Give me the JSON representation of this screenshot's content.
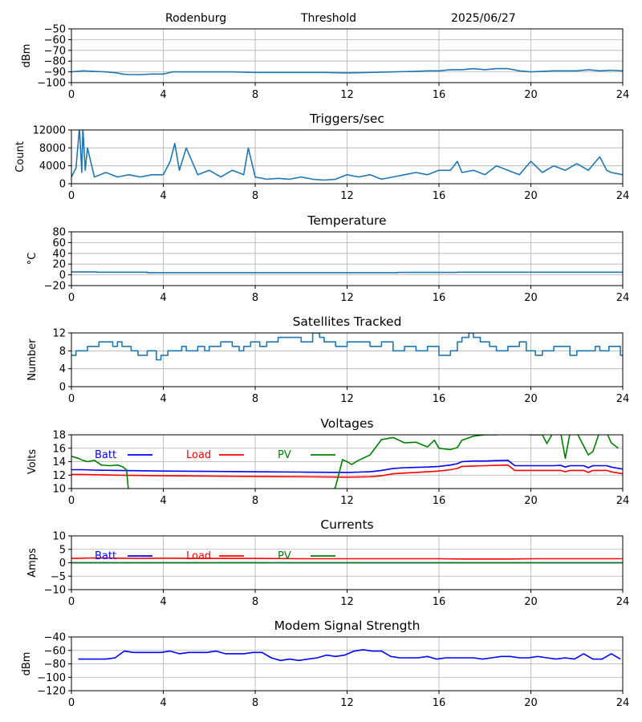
{
  "header": {
    "station": "Rodenburg",
    "mode": "Threshold",
    "date": "2025/06/27"
  },
  "colors": {
    "default_line": "#1f77b4",
    "batt": "#0000ff",
    "load": "#ff0000",
    "pv": "#008000",
    "grid": "#b0b0b0"
  },
  "chart_data": [
    {
      "type": "line",
      "title": "",
      "ylabel": "dBm",
      "xlim": [
        0,
        24
      ],
      "ylim": [
        -100,
        -50
      ],
      "xticks": [
        0,
        4,
        8,
        12,
        16,
        20,
        24
      ],
      "yticks": [
        -100,
        -90,
        -80,
        -70,
        -60,
        -50
      ],
      "grid": true,
      "series": [
        {
          "color": "#1f77b4",
          "x": [
            0,
            0.5,
            1,
            1.5,
            2,
            2.2,
            2.5,
            3,
            3.5,
            4,
            4.4,
            5,
            6,
            7,
            8,
            9,
            10,
            11,
            12,
            13,
            14,
            15,
            15.5,
            16,
            16.5,
            17,
            17.5,
            18,
            18.5,
            19,
            19.5,
            20,
            20.5,
            21,
            21.5,
            22,
            22.5,
            23,
            23.5,
            24
          ],
          "y": [
            -90,
            -89,
            -89.5,
            -90,
            -91,
            -92,
            -92.5,
            -92.5,
            -92,
            -92,
            -90,
            -90,
            -90,
            -90,
            -90.5,
            -90.5,
            -90.5,
            -90.5,
            -91,
            -90.5,
            -90,
            -89.5,
            -89,
            -89,
            -88,
            -88,
            -87,
            -88,
            -87,
            -87,
            -89,
            -90,
            -89.5,
            -89,
            -89,
            -89,
            -88,
            -89,
            -88.5,
            -89
          ]
        }
      ]
    },
    {
      "type": "line",
      "title": "Triggers/sec",
      "ylabel": "Count",
      "xlim": [
        0,
        24
      ],
      "ylim": [
        0,
        12000
      ],
      "xticks": [
        0,
        4,
        8,
        12,
        16,
        20,
        24
      ],
      "yticks": [
        0,
        4000,
        8000,
        12000
      ],
      "grid": true,
      "series": [
        {
          "color": "#1f77b4",
          "x": [
            0,
            0.2,
            0.35,
            0.45,
            0.5,
            0.6,
            0.7,
            1,
            1.5,
            2,
            2.5,
            3,
            3.5,
            4,
            4.3,
            4.5,
            4.7,
            5,
            5.5,
            6,
            6.5,
            7,
            7.5,
            7.7,
            8,
            8.5,
            9,
            9.5,
            10,
            10.5,
            11,
            11.5,
            12,
            12.5,
            13,
            13.5,
            14,
            14.5,
            15,
            15.5,
            16,
            16.5,
            16.8,
            17,
            17.5,
            18,
            18.5,
            19,
            19.5,
            20,
            20.5,
            21,
            21.5,
            22,
            22.5,
            23,
            23.3,
            23.5,
            24
          ],
          "y": [
            1500,
            3500,
            12500,
            2500,
            12500,
            3000,
            8000,
            1500,
            2500,
            1500,
            2000,
            1500,
            2000,
            2000,
            5000,
            9000,
            3000,
            8000,
            2000,
            3000,
            1500,
            3000,
            2000,
            8000,
            1500,
            1000,
            1200,
            1000,
            1500,
            1000,
            800,
            1000,
            2000,
            1500,
            2000,
            1000,
            1500,
            2000,
            2500,
            2000,
            3000,
            3000,
            5000,
            2500,
            3000,
            2000,
            4000,
            3000,
            2000,
            5000,
            2500,
            4000,
            3000,
            4500,
            3000,
            6000,
            3000,
            2500,
            2000
          ]
        }
      ]
    },
    {
      "type": "line",
      "title": "Temperature",
      "ylabel": "°C",
      "xlim": [
        0,
        24
      ],
      "ylim": [
        -20,
        80
      ],
      "xticks": [
        0,
        4,
        8,
        12,
        16,
        20,
        24
      ],
      "yticks": [
        -20,
        0,
        20,
        40,
        60,
        80
      ],
      "grid": true,
      "series": [
        {
          "color": "#1f77b4",
          "x": [
            0,
            1.1,
            1.1,
            3.3,
            3.3,
            14.2,
            14.2,
            16.8,
            16.8,
            24
          ],
          "y": [
            5.5,
            5.5,
            5,
            5,
            4,
            4,
            4.5,
            4.5,
            5,
            5
          ]
        }
      ]
    },
    {
      "type": "line",
      "title": "Satellites Tracked",
      "ylabel": "Number",
      "xlim": [
        0,
        24
      ],
      "ylim": [
        0,
        12
      ],
      "xticks": [
        0,
        4,
        8,
        12,
        16,
        20,
        24
      ],
      "yticks": [
        0,
        4,
        8,
        12
      ],
      "grid": true,
      "series": [
        {
          "color": "#1f77b4",
          "x": [
            0,
            0.2,
            0.2,
            0.7,
            0.7,
            1.2,
            1.2,
            1.8,
            1.8,
            2,
            2,
            2.2,
            2.2,
            2.6,
            2.6,
            2.9,
            2.9,
            3.3,
            3.3,
            3.7,
            3.7,
            3.9,
            3.9,
            4.2,
            4.2,
            4.8,
            4.8,
            5,
            5,
            5.5,
            5.5,
            5.8,
            5.8,
            6,
            6,
            6.5,
            6.5,
            7,
            7,
            7.3,
            7.3,
            7.5,
            7.5,
            7.8,
            7.8,
            8.2,
            8.2,
            8.5,
            8.5,
            9,
            9,
            10,
            10,
            10.5,
            10.5,
            10.8,
            10.8,
            11,
            11,
            11.5,
            11.5,
            12,
            12,
            13,
            13,
            13.5,
            13.5,
            14,
            14,
            14.5,
            14.5,
            15,
            15,
            15.5,
            15.5,
            16,
            16,
            16.5,
            16.5,
            16.8,
            16.8,
            17,
            17,
            17.3,
            17.3,
            17.5,
            17.5,
            17.8,
            17.8,
            18.2,
            18.2,
            18.5,
            18.5,
            19,
            19,
            19.5,
            19.5,
            19.8,
            19.8,
            20.2,
            20.2,
            20.5,
            20.5,
            21,
            21,
            21.7,
            21.7,
            22,
            22,
            22.8,
            22.8,
            23,
            23,
            23.4,
            23.4,
            23.9,
            23.9,
            24
          ],
          "y": [
            7,
            7,
            8,
            8,
            9,
            9,
            10,
            10,
            9,
            9,
            10,
            10,
            9,
            9,
            8,
            8,
            7,
            7,
            8,
            8,
            6,
            6,
            7,
            7,
            8,
            8,
            9,
            9,
            8,
            8,
            9,
            9,
            8,
            8,
            9,
            9,
            10,
            10,
            9,
            9,
            8,
            8,
            9,
            9,
            10,
            10,
            9,
            9,
            10,
            10,
            11,
            11,
            10,
            10,
            12,
            12,
            11,
            11,
            10,
            10,
            9,
            9,
            10,
            10,
            9,
            9,
            10,
            10,
            8,
            8,
            9,
            9,
            8,
            8,
            9,
            9,
            7,
            7,
            8,
            8,
            10,
            10,
            11,
            11,
            12,
            12,
            11,
            11,
            10,
            10,
            9,
            9,
            8,
            8,
            9,
            9,
            10,
            10,
            8,
            8,
            7,
            7,
            8,
            8,
            9,
            9,
            7,
            7,
            8,
            8,
            9,
            9,
            8,
            8,
            9,
            9,
            7,
            7
          ]
        }
      ]
    },
    {
      "type": "line",
      "title": "Voltages",
      "ylabel": "Volts",
      "xlim": [
        0,
        24
      ],
      "ylim": [
        10,
        18
      ],
      "xticks": [
        0,
        4,
        8,
        12,
        16,
        20,
        24
      ],
      "yticks": [
        10,
        12,
        14,
        16,
        18
      ],
      "grid": true,
      "legend": "top-left",
      "series": [
        {
          "name": "Batt",
          "color": "#0000ff",
          "x": [
            0,
            0.5,
            1,
            2,
            3,
            4,
            6,
            8,
            10,
            12,
            12.5,
            13,
            13.5,
            14,
            14.5,
            15,
            15.5,
            16,
            16.5,
            16.8,
            17,
            17.5,
            18,
            18.5,
            19,
            19.3,
            20,
            21,
            21.3,
            21.5,
            21.7,
            22.3,
            22.5,
            22.7,
            23.3,
            23.5,
            24
          ],
          "y": [
            12.8,
            12.8,
            12.75,
            12.7,
            12.65,
            12.6,
            12.55,
            12.5,
            12.45,
            12.4,
            12.45,
            12.5,
            12.7,
            13,
            13.1,
            13.15,
            13.2,
            13.3,
            13.5,
            13.7,
            14,
            14.1,
            14.1,
            14.15,
            14.2,
            13.4,
            13.4,
            13.4,
            13.45,
            13.2,
            13.4,
            13.4,
            13.1,
            13.4,
            13.4,
            13.2,
            12.9
          ]
        },
        {
          "name": "Load",
          "color": "#ff0000",
          "x": [
            0,
            0.5,
            1,
            2,
            3,
            4,
            6,
            8,
            10,
            12,
            13,
            13.5,
            14,
            14.5,
            15,
            15.5,
            16,
            16.5,
            16.8,
            17,
            17.5,
            18,
            18.5,
            19,
            19.3,
            20,
            21,
            21.3,
            21.5,
            21.7,
            22.3,
            22.5,
            22.7,
            23.3,
            23.5,
            24
          ],
          "y": [
            12.1,
            12.1,
            12.05,
            12,
            11.95,
            11.9,
            11.85,
            11.8,
            11.75,
            11.7,
            11.75,
            11.9,
            12.2,
            12.3,
            12.4,
            12.5,
            12.6,
            12.8,
            13,
            13.3,
            13.35,
            13.4,
            13.45,
            13.5,
            12.7,
            12.7,
            12.7,
            12.7,
            12.5,
            12.7,
            12.7,
            12.4,
            12.7,
            12.7,
            12.5,
            12.2
          ]
        },
        {
          "name": "PV",
          "color": "#008000",
          "x": [
            0,
            0.3,
            0.5,
            0.7,
            1,
            1.3,
            1.7,
            2,
            2.2,
            2.4,
            2.5,
            11.3,
            11.5,
            11.8,
            12,
            12.2,
            12.5,
            13,
            13.5,
            14,
            14.5,
            15,
            15.5,
            15.8,
            16,
            16.5,
            16.8,
            17,
            17.5,
            18,
            18.5,
            19,
            19.5,
            20,
            20.5,
            20.7,
            21,
            21.3,
            21.5,
            21.7,
            22,
            22.5,
            22.7,
            23,
            23.3,
            23.5,
            23.8
          ],
          "y": [
            14.8,
            14.5,
            14.2,
            14,
            14.2,
            13.5,
            13.4,
            13.5,
            13.3,
            12.8,
            9,
            9,
            10.3,
            14.3,
            14,
            13.6,
            14.2,
            15,
            17.3,
            17.6,
            16.8,
            16.9,
            16.2,
            17.2,
            16,
            15.8,
            16.1,
            17.2,
            17.8,
            18,
            18,
            18.2,
            18.1,
            18,
            18,
            16.7,
            18.5,
            18.3,
            14.5,
            18.2,
            18.3,
            15,
            15.5,
            18.5,
            18.3,
            16.8,
            16
          ]
        }
      ]
    },
    {
      "type": "line",
      "title": "Currents",
      "ylabel": "Amps",
      "xlim": [
        0,
        24
      ],
      "ylim": [
        -10,
        10
      ],
      "xticks": [
        0,
        4,
        8,
        12,
        16,
        20,
        24
      ],
      "yticks": [
        -10,
        -5,
        0,
        5,
        10
      ],
      "grid": true,
      "legend": "top-left",
      "series": [
        {
          "name": "Batt",
          "color": "#0000ff",
          "x": [
            0,
            24
          ],
          "y": [
            0,
            0
          ]
        },
        {
          "name": "Load",
          "color": "#ff0000",
          "x": [
            0,
            1,
            2,
            3,
            4,
            6,
            8,
            10,
            12,
            14,
            16,
            17,
            18,
            19,
            20,
            22,
            24
          ],
          "y": [
            1.6,
            1.8,
            1.7,
            1.6,
            1.7,
            1.6,
            1.6,
            1.5,
            1.5,
            1.5,
            1.5,
            1.4,
            1.4,
            1.4,
            1.5,
            1.5,
            1.5
          ]
        },
        {
          "name": "PV",
          "color": "#008000",
          "x": [
            0,
            24
          ],
          "y": [
            0,
            0
          ]
        }
      ]
    },
    {
      "type": "line",
      "title": "Modem Signal Strength",
      "ylabel": "dBm",
      "xlim": [
        0,
        24
      ],
      "ylim": [
        -120,
        -40
      ],
      "xticks": [
        0,
        4,
        8,
        12,
        16,
        20,
        24
      ],
      "yticks": [
        -120,
        -100,
        -80,
        -60,
        -40
      ],
      "grid": true,
      "series": [
        {
          "color": "#0000ff",
          "x": [
            0.3,
            0.7,
            1.1,
            1.5,
            1.9,
            2.3,
            2.7,
            3.1,
            3.5,
            3.9,
            4.3,
            4.7,
            5.1,
            5.5,
            5.9,
            6.3,
            6.7,
            7.1,
            7.5,
            7.9,
            8.3,
            8.7,
            9.1,
            9.5,
            9.9,
            10.3,
            10.7,
            11.1,
            11.5,
            11.9,
            12.3,
            12.7,
            13.1,
            13.5,
            13.9,
            14.3,
            14.7,
            15.1,
            15.5,
            15.9,
            16.3,
            16.7,
            17.1,
            17.5,
            17.9,
            18.3,
            18.7,
            19.1,
            19.5,
            19.9,
            20.3,
            20.7,
            21.1,
            21.5,
            21.9,
            22.3,
            22.7,
            23.1,
            23.5,
            23.9
          ],
          "y": [
            -73,
            -73,
            -73,
            -73,
            -71,
            -61,
            -63,
            -63,
            -63,
            -63,
            -61,
            -65,
            -63,
            -63,
            -63,
            -61,
            -65,
            -65,
            -65,
            -63,
            -63,
            -71,
            -75,
            -73,
            -75,
            -73,
            -71,
            -67,
            -69,
            -67,
            -61,
            -59,
            -61,
            -61,
            -69,
            -71,
            -71,
            -71,
            -69,
            -73,
            -71,
            -71,
            -71,
            -71,
            -73,
            -71,
            -69,
            -69,
            -71,
            -71,
            -69,
            -71,
            -73,
            -71,
            -73,
            -65,
            -73,
            -73,
            -65,
            -73
          ]
        }
      ]
    }
  ]
}
